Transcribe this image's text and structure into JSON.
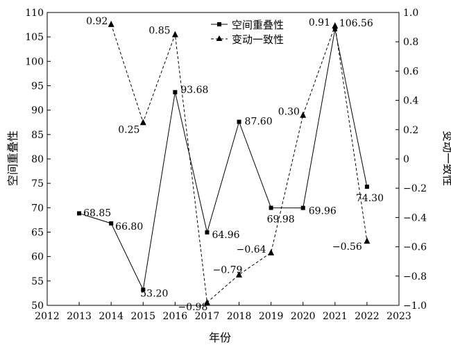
{
  "chart_data": {
    "type": "line",
    "xlabel": "年份",
    "ylabel_left": "空间重叠性",
    "ylabel_right": "变动一致性",
    "x_ticks": [
      "2012",
      "2013",
      "2014",
      "2015",
      "2016",
      "2017",
      "2018",
      "2019",
      "2020",
      "2021",
      "2022",
      "2023"
    ],
    "x_range": [
      2012,
      2023
    ],
    "y_left_ticks": [
      "50",
      "55",
      "60",
      "65",
      "70",
      "75",
      "80",
      "85",
      "90",
      "95",
      "100",
      "105",
      "110"
    ],
    "y_left_range": [
      50,
      110
    ],
    "y_right_ticks": [
      "−1.0",
      "−0.8",
      "−0.6",
      "−0.4",
      "−0.2",
      "0",
      "0.2",
      "0.4",
      "0.6",
      "0.8",
      "1.0"
    ],
    "y_right_range": [
      -1.0,
      1.0
    ],
    "legend_position": "top-center",
    "grid": false,
    "series": [
      {
        "name": "空间重叠性",
        "axis": "left",
        "line_style": "solid",
        "marker": "square",
        "x": [
          2013,
          2014,
          2015,
          2016,
          2017,
          2018,
          2019,
          2020,
          2021,
          2022
        ],
        "values": [
          68.85,
          66.8,
          53.2,
          93.68,
          64.96,
          87.6,
          69.98,
          69.96,
          106.56,
          74.3
        ],
        "labels": [
          "68.85",
          "66.80",
          "53.20",
          "93.68",
          "64.96",
          "87.60",
          "69.98",
          "69.96",
          "106.56",
          "74.30"
        ]
      },
      {
        "name": "变动一致性",
        "axis": "right",
        "line_style": "dashed",
        "marker": "triangle",
        "x": [
          2014,
          2015,
          2016,
          2017,
          2018,
          2019,
          2020,
          2021,
          2022
        ],
        "values": [
          0.92,
          0.25,
          0.85,
          -0.98,
          -0.79,
          -0.64,
          0.3,
          0.91,
          -0.56
        ],
        "labels": [
          "0.92",
          "0.25",
          "0.85",
          "−0.98",
          "−0.79",
          "−0.64",
          "0.30",
          "0.91",
          "−0.56"
        ]
      }
    ]
  }
}
